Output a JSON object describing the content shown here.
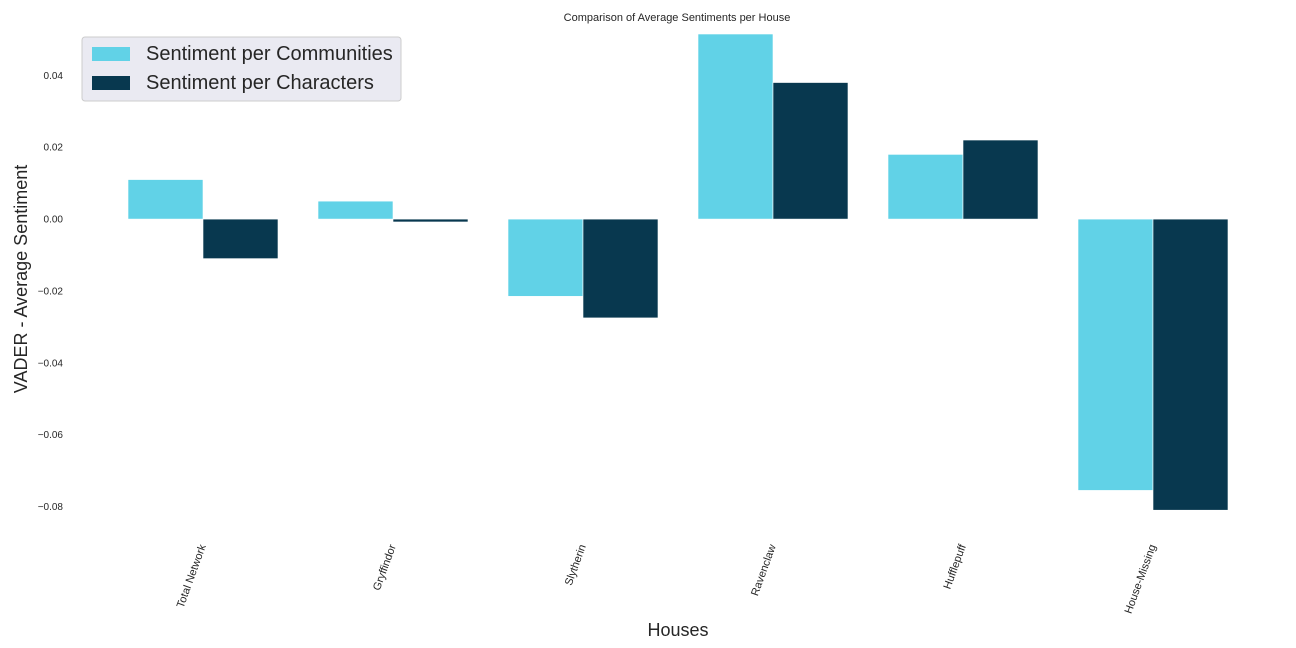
{
  "chart_data": {
    "type": "bar",
    "title": "Comparison of Average Sentiments per House",
    "xlabel": "Houses",
    "ylabel": "VADER - Average Sentiment",
    "categories": [
      "Total Network",
      "Gryffindor",
      "Slytherin",
      "Ravenclaw",
      "Hufflepuff",
      "House-Missing"
    ],
    "series": [
      {
        "name": "Sentiment per Communities",
        "color": "#61d2e7",
        "values": [
          0.011,
          0.005,
          -0.0215,
          0.0515,
          0.018,
          -0.0755
        ]
      },
      {
        "name": "Sentiment per Characters",
        "color": "#08384f",
        "values": [
          -0.011,
          -0.0008,
          -0.0275,
          0.038,
          0.022,
          -0.081
        ]
      }
    ],
    "yticks": [
      -0.08,
      -0.06,
      -0.04,
      -0.02,
      0.0,
      0.02,
      0.04
    ],
    "ytick_labels": [
      "−0.08",
      "−0.06",
      "−0.04",
      "−0.02",
      "0.00",
      "0.02",
      "0.04"
    ],
    "ylim": [
      -0.0815,
      0.0515
    ],
    "grid": false,
    "legend_position": "top-left"
  }
}
